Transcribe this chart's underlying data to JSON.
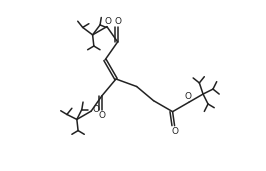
{
  "background": "#ffffff",
  "line_color": "#222222",
  "line_width": 1.1,
  "fig_width": 2.66,
  "fig_height": 1.71,
  "dpi": 100,
  "xlim": [
    0,
    13.3
  ],
  "ylim": [
    0,
    8.55
  ]
}
